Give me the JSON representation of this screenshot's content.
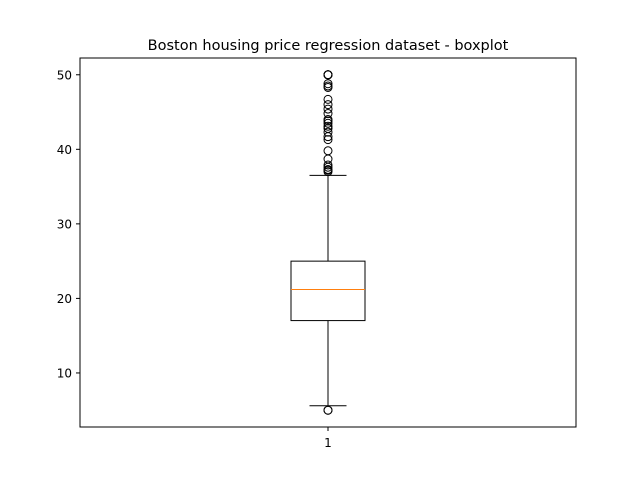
{
  "chart_data": {
    "type": "boxplot",
    "title": "Boston housing price regression dataset - boxplot",
    "xlabel": "",
    "ylabel": "",
    "categories": [
      "1"
    ],
    "ylim": [
      2.75,
      52.25
    ],
    "yticks": [
      10,
      20,
      30,
      40,
      50
    ],
    "box": {
      "whisker_low": 5.6,
      "q1": 17.025,
      "median": 21.2,
      "q3": 25.0,
      "whisker_high": 36.5
    },
    "outliers": [
      5.0,
      5.0,
      37.0,
      37.2,
      37.3,
      37.6,
      37.9,
      38.7,
      39.8,
      41.3,
      41.7,
      42.3,
      42.8,
      43.1,
      43.5,
      43.8,
      44.0,
      44.8,
      45.4,
      46.0,
      46.7,
      48.3,
      48.5,
      48.8,
      50.0,
      50.0,
      50.0,
      50.0,
      50.0
    ],
    "colors": {
      "box": "#000000",
      "median": "#ff7f0e",
      "whisker": "#000000",
      "outlier": "#000000"
    },
    "grid": false
  }
}
